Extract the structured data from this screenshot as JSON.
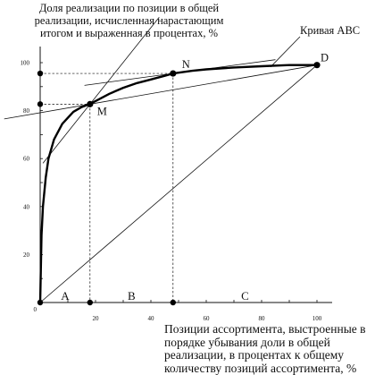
{
  "chart_data": {
    "type": "line",
    "ylabel": "Доля реализации по позиции в общей реализации, исчисленная нарастающим итогом и выраженная в процентах, %",
    "xlabel": "Позиции ассортимента, выстроенные в порядке убывания доли в общей реализации, в процентах к общему количеству позиций ассортимента, %",
    "curve_name": "Кривая АВС",
    "xlim": [
      0,
      100
    ],
    "ylim": [
      0,
      100
    ],
    "x_ticks": [
      "20",
      "40",
      "60",
      "80",
      "100"
    ],
    "y_ticks": [
      "20",
      "40",
      "60",
      "80",
      "100"
    ],
    "origin_label": "0",
    "series": [
      {
        "x": [
          0,
          0.5,
          1,
          2,
          3,
          5,
          8,
          12,
          15,
          18,
          20,
          25,
          30,
          35,
          40,
          45,
          48,
          55,
          60,
          70,
          80,
          90,
          100
        ],
        "y": [
          0,
          28,
          40,
          52,
          60,
          68,
          74.5,
          79.5,
          81.5,
          82.8,
          84,
          87,
          89.5,
          91.5,
          93,
          94.5,
          95.5,
          96.6,
          97.2,
          98,
          98.5,
          99,
          99
        ]
      }
    ],
    "points": [
      {
        "label": "M",
        "x": 18,
        "y": 82.7
      },
      {
        "label": "N",
        "x": 48,
        "y": 95.5
      },
      {
        "label": "D",
        "x": 100,
        "y": 99
      }
    ],
    "axis_markers": [
      {
        "x": 0,
        "y": 0
      },
      {
        "x": 18,
        "y": 0
      },
      {
        "x": 48,
        "y": 0
      },
      {
        "x": 0,
        "y": 82.7
      },
      {
        "x": 0,
        "y": 95.5
      }
    ],
    "zones": [
      {
        "label": "A",
        "x": 9
      },
      {
        "label": "B",
        "x": 33
      },
      {
        "label": "C",
        "x": 74
      }
    ]
  }
}
